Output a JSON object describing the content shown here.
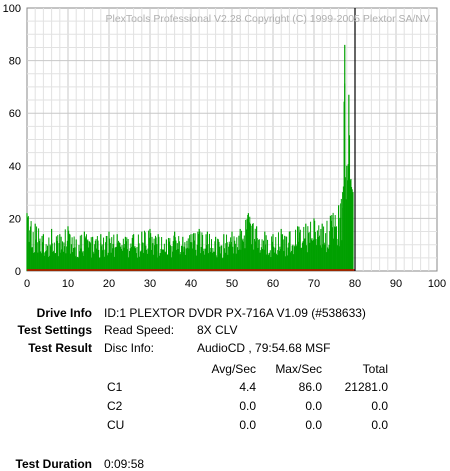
{
  "chart_data": {
    "type": "bar",
    "title": "PlexTools Professional V2.28 Copyright (C) 1999-2005 Plextor SA/NV",
    "xlim": [
      0,
      100
    ],
    "ylim": [
      0,
      100
    ],
    "x_ticks": [
      "0",
      "10",
      "20",
      "30",
      "40",
      "50",
      "60",
      "70",
      "80",
      "90",
      "100"
    ],
    "y_ticks": [
      "0",
      "20",
      "40",
      "60",
      "80",
      "100"
    ],
    "grid": true,
    "x_end_marker": 80,
    "series": [
      {
        "color": "#00a000",
        "x": [
          0,
          2,
          4,
          6,
          8,
          10,
          12,
          14,
          16,
          18,
          20,
          22,
          24,
          26,
          28,
          30,
          32,
          34,
          36,
          38,
          40,
          42,
          44,
          46,
          48,
          50,
          52,
          54,
          56,
          58,
          60,
          62,
          64,
          66,
          68,
          70,
          72,
          74,
          76,
          77,
          77.5,
          78,
          78.5,
          79,
          79.5
        ],
        "values": [
          22,
          18,
          14,
          16,
          14,
          17,
          12,
          15,
          13,
          14,
          15,
          14,
          13,
          14,
          15,
          16,
          14,
          12,
          15,
          13,
          14,
          16,
          15,
          13,
          14,
          15,
          16,
          22,
          17,
          15,
          14,
          16,
          15,
          17,
          18,
          20,
          18,
          21,
          25,
          30,
          86,
          40,
          67,
          35,
          30
        ]
      },
      {
        "color": "#d00000",
        "x": [
          0,
          80
        ],
        "values": [
          0.4,
          0.4
        ]
      }
    ]
  },
  "info": {
    "drive_info_label": "Drive Info",
    "drive_info_value": "ID:1 PLEXTOR DVDR PX-716A V1.09 (#538633)",
    "test_settings_label": "Test Settings",
    "read_speed_label": "Read Speed:",
    "read_speed_value": "8X CLV",
    "test_result_label": "Test Result",
    "disc_info_label": "Disc Info:",
    "disc_info_value": "AudioCD , 79:54.68 MSF",
    "test_duration_label": "Test Duration",
    "test_duration_value": "0:09:58"
  },
  "results": {
    "headers": [
      "Avg/Sec",
      "Max/Sec",
      "Total"
    ],
    "rows": [
      {
        "name": "C1",
        "avg": "4.4",
        "max": "86.0",
        "total": "21281.0"
      },
      {
        "name": "C2",
        "avg": "0.0",
        "max": "0.0",
        "total": "0.0"
      },
      {
        "name": "CU",
        "avg": "0.0",
        "max": "0.0",
        "total": "0.0"
      }
    ]
  }
}
